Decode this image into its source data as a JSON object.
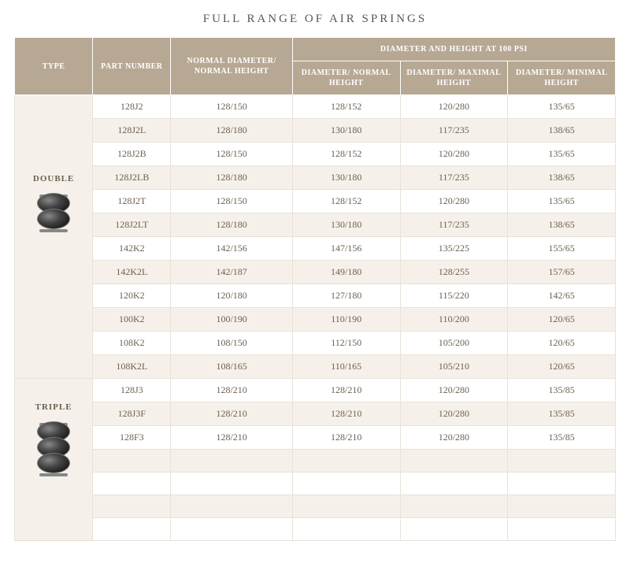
{
  "title": "FULL RANGE OF AIR SPRINGS",
  "headers": {
    "type": "TYPE",
    "part": "PART NUMBER",
    "normal": "NORMAL DIAMETER/ NORMAL HEIGHT",
    "group": "DIAMETER AND HEIGHT AT 100 PSI",
    "dnormal": "DIAMETER/ NORMAL HEIGHT",
    "dmax": "DIAMETER/ MAXIMAL HEIGHT",
    "dmin": "DIAMETER/ MINIMAL HEIGHT"
  },
  "groups": [
    {
      "label": "DOUBLE",
      "lobes": 2,
      "rows": [
        {
          "part": "128J2",
          "normal": "128/150",
          "dnormal": "128/152",
          "dmax": "120/280",
          "dmin": "135/65"
        },
        {
          "part": "128J2L",
          "normal": "128/180",
          "dnormal": "130/180",
          "dmax": "117/235",
          "dmin": "138/65"
        },
        {
          "part": "128J2B",
          "normal": "128/150",
          "dnormal": "128/152",
          "dmax": "120/280",
          "dmin": "135/65"
        },
        {
          "part": "128J2LB",
          "normal": "128/180",
          "dnormal": "130/180",
          "dmax": "117/235",
          "dmin": "138/65"
        },
        {
          "part": "128J2T",
          "normal": "128/150",
          "dnormal": "128/152",
          "dmax": "120/280",
          "dmin": "135/65"
        },
        {
          "part": "128J2LT",
          "normal": "128/180",
          "dnormal": "130/180",
          "dmax": "117/235",
          "dmin": "138/65"
        },
        {
          "part": "142K2",
          "normal": "142/156",
          "dnormal": "147/156",
          "dmax": "135/225",
          "dmin": "155/65"
        },
        {
          "part": "142K2L",
          "normal": "142/187",
          "dnormal": "149/180",
          "dmax": "128/255",
          "dmin": "157/65"
        },
        {
          "part": "120K2",
          "normal": "120/180",
          "dnormal": "127/180",
          "dmax": "115/220",
          "dmin": "142/65"
        },
        {
          "part": "100K2",
          "normal": "100/190",
          "dnormal": "110/190",
          "dmax": "110/200",
          "dmin": "120/65"
        },
        {
          "part": "108K2",
          "normal": "108/150",
          "dnormal": "112/150",
          "dmax": "105/200",
          "dmin": "120/65"
        },
        {
          "part": "108K2L",
          "normal": "108/165",
          "dnormal": "110/165",
          "dmax": "105/210",
          "dmin": "120/65"
        }
      ]
    },
    {
      "label": "TRIPLE",
      "lobes": 3,
      "rows": [
        {
          "part": "128J3",
          "normal": "128/210",
          "dnormal": "128/210",
          "dmax": "120/280",
          "dmin": "135/85"
        },
        {
          "part": "128J3F",
          "normal": "128/210",
          "dnormal": "128/210",
          "dmax": "120/280",
          "dmin": "135/85"
        },
        {
          "part": "128F3",
          "normal": "128/210",
          "dnormal": "128/210",
          "dmax": "120/280",
          "dmin": "135/85"
        },
        {
          "part": "",
          "normal": "",
          "dnormal": "",
          "dmax": "",
          "dmin": ""
        },
        {
          "part": "",
          "normal": "",
          "dnormal": "",
          "dmax": "",
          "dmin": ""
        },
        {
          "part": "",
          "normal": "",
          "dnormal": "",
          "dmax": "",
          "dmin": ""
        },
        {
          "part": "",
          "normal": "",
          "dnormal": "",
          "dmax": "",
          "dmin": ""
        }
      ]
    }
  ],
  "colors": {
    "header_bg": "#b7a893",
    "header_text": "#ffffff",
    "row_odd_bg": "#f5f1ea",
    "row_even_bg": "#ffffff",
    "cell_border": "#e8e2d8",
    "text": "#6b5f50",
    "title": "#5e564c"
  }
}
